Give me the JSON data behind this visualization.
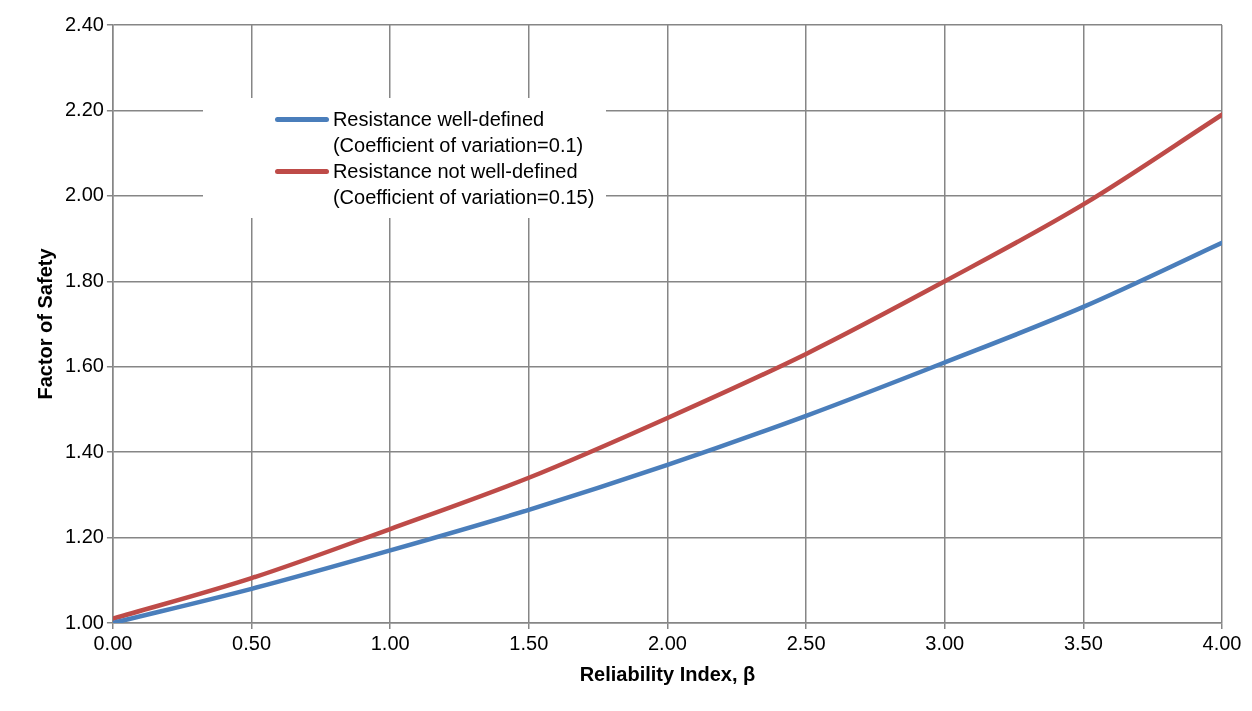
{
  "chart_data": {
    "type": "line",
    "xlabel": "Reliability Index, β",
    "ylabel": "Factor of Safety",
    "x": [
      0,
      0.5,
      1,
      1.5,
      2,
      2.5,
      3,
      3.5,
      4
    ],
    "series": [
      {
        "name": "Resistance well-defined\n(Coefficient of variation=0.1)",
        "color": "#4a7ebb",
        "values": [
          1.0,
          1.08,
          1.17,
          1.265,
          1.37,
          1.485,
          1.61,
          1.74,
          1.89
        ]
      },
      {
        "name": "Resistance not well-defined\n(Coefficient of variation=0.15)",
        "color": "#be4b48",
        "values": [
          1.01,
          1.105,
          1.22,
          1.34,
          1.48,
          1.63,
          1.8,
          1.98,
          2.19
        ]
      }
    ],
    "xlim": [
      0,
      4
    ],
    "xticks": [
      {
        "value": 0,
        "label": "0.00"
      },
      {
        "value": 0.5,
        "label": "0.50"
      },
      {
        "value": 1,
        "label": "1.00"
      },
      {
        "value": 1.5,
        "label": "1.50"
      },
      {
        "value": 2,
        "label": "2.00"
      },
      {
        "value": 2.5,
        "label": "2.50"
      },
      {
        "value": 3,
        "label": "3.00"
      },
      {
        "value": 3.5,
        "label": "3.50"
      },
      {
        "value": 4,
        "label": "4.00"
      }
    ],
    "ylim": [
      1,
      2.4
    ],
    "yticks": [
      {
        "value": 1,
        "label": "1.00"
      },
      {
        "value": 1.2,
        "label": "1.20"
      },
      {
        "value": 1.4,
        "label": "1.40"
      },
      {
        "value": 1.6,
        "label": "1.60"
      },
      {
        "value": 1.8,
        "label": "1.80"
      },
      {
        "value": 2,
        "label": "2.00"
      },
      {
        "value": 2.2,
        "label": "2.20"
      },
      {
        "value": 2.4,
        "label": "2.40"
      }
    ],
    "grid": true,
    "legend": "top left",
    "marker": "none",
    "line_style": "solid"
  }
}
